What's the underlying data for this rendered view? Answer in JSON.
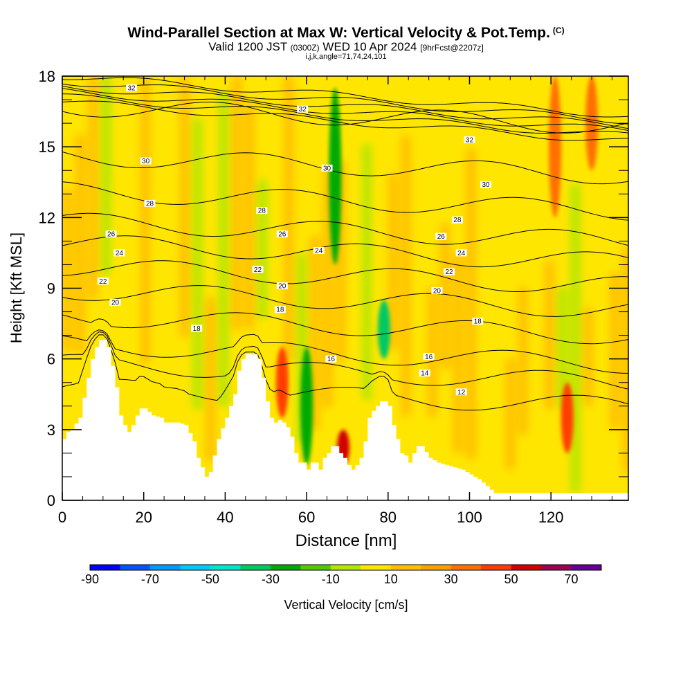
{
  "header": {
    "title": "Wind-Parallel Section at Max W: Vertical Velocity & Pot.Temp.",
    "copyright": "(C)",
    "valid_prefix": "Valid 1200 JST",
    "valid_utc": "(0300Z)",
    "valid_date": "WED 10 Apr 2024",
    "forecast": "[9hrFcst@2207z]",
    "params": "i,j,k,angle=71,74,24,101"
  },
  "chart_data": {
    "type": "heatmap",
    "title": "Wind-Parallel Section at Max W: Vertical Velocity & Pot.Temp.",
    "xlabel": "Distance [nm]",
    "ylabel": "Height [Kft MSL]",
    "xlim": [
      0,
      139
    ],
    "ylim": [
      0,
      18
    ],
    "x_ticks": [
      0,
      20,
      40,
      60,
      80,
      100,
      120
    ],
    "y_ticks": [
      0,
      3,
      6,
      9,
      12,
      15,
      18
    ],
    "terrain_profile": {
      "x": [
        0,
        1,
        2,
        4,
        6,
        7,
        8,
        9,
        10,
        11,
        12,
        13,
        14,
        15,
        16,
        17,
        18,
        19,
        20,
        22,
        24,
        25,
        26,
        28,
        30,
        32,
        33,
        34,
        35,
        36,
        37,
        38,
        40,
        42,
        43,
        44,
        45,
        46,
        47,
        48,
        49,
        50,
        51,
        52,
        53,
        54,
        55,
        56,
        57,
        58,
        59,
        60,
        61,
        62,
        63,
        64,
        65,
        66,
        67,
        68,
        69,
        70,
        71,
        72,
        73,
        74,
        75,
        76,
        77,
        78,
        79,
        80,
        81,
        82,
        83,
        84,
        85,
        86,
        87,
        88,
        90,
        92,
        94,
        96,
        98,
        100,
        102,
        104,
        106,
        108,
        110,
        115,
        120,
        125,
        130,
        135,
        139
      ],
      "y": [
        2.6,
        2.9,
        3.0,
        3.5,
        5.2,
        6.0,
        6.5,
        6.8,
        6.8,
        6.5,
        5.7,
        4.8,
        3.6,
        3.2,
        2.9,
        3.2,
        3.6,
        3.9,
        3.9,
        3.6,
        3.5,
        3.3,
        3.3,
        3.3,
        3.2,
        2.5,
        1.8,
        1.4,
        1.0,
        1.2,
        1.9,
        2.6,
        3.5,
        4.5,
        5.5,
        6.0,
        6.2,
        6.2,
        6.2,
        6.0,
        5.2,
        4.2,
        3.5,
        3.3,
        3.4,
        3.3,
        3.1,
        2.7,
        2.0,
        1.6,
        1.6,
        1.3,
        1.6,
        1.6,
        1.3,
        1.8,
        2.0,
        2.3,
        2.3,
        2.0,
        1.8,
        1.5,
        1.3,
        1.5,
        1.8,
        2.5,
        3.5,
        3.8,
        4.0,
        4.2,
        4.2,
        4.0,
        3.2,
        2.6,
        2.0,
        1.9,
        1.6,
        2.0,
        2.3,
        2.3,
        1.8,
        1.6,
        1.5,
        1.4,
        1.3,
        1.1,
        0.9,
        0.6,
        0.3,
        0.3,
        0.3,
        0.3,
        0.3,
        0.3,
        0.3,
        0.3,
        0.3
      ]
    },
    "theta_contours_K": [
      12,
      14,
      16,
      18,
      20,
      22,
      24,
      26,
      28,
      30,
      32
    ],
    "contour_labels": [
      {
        "text": "32",
        "x": 17,
        "y": 17.5
      },
      {
        "text": "32",
        "x": 59,
        "y": 16.6
      },
      {
        "text": "32",
        "x": 100,
        "y": 15.3
      },
      {
        "text": "30",
        "x": 20.5,
        "y": 14.4
      },
      {
        "text": "30",
        "x": 65,
        "y": 14.1
      },
      {
        "text": "30",
        "x": 104,
        "y": 13.4
      },
      {
        "text": "28",
        "x": 21.5,
        "y": 12.6
      },
      {
        "text": "28",
        "x": 49,
        "y": 12.3
      },
      {
        "text": "28",
        "x": 97,
        "y": 11.9
      },
      {
        "text": "26",
        "x": 12,
        "y": 11.3
      },
      {
        "text": "26",
        "x": 54,
        "y": 11.3
      },
      {
        "text": "26",
        "x": 93,
        "y": 11.2
      },
      {
        "text": "24",
        "x": 14,
        "y": 10.5
      },
      {
        "text": "24",
        "x": 63,
        "y": 10.6
      },
      {
        "text": "24",
        "x": 98,
        "y": 10.5
      },
      {
        "text": "22",
        "x": 10,
        "y": 9.3
      },
      {
        "text": "22",
        "x": 48,
        "y": 9.8
      },
      {
        "text": "22",
        "x": 95,
        "y": 9.7
      },
      {
        "text": "20",
        "x": 13,
        "y": 8.4
      },
      {
        "text": "20",
        "x": 54,
        "y": 9.1
      },
      {
        "text": "20",
        "x": 92,
        "y": 8.9
      },
      {
        "text": "18",
        "x": 33,
        "y": 7.3
      },
      {
        "text": "18",
        "x": 53.5,
        "y": 8.1
      },
      {
        "text": "18",
        "x": 102,
        "y": 7.6
      },
      {
        "text": "16",
        "x": 66,
        "y": 6.0
      },
      {
        "text": "16",
        "x": 90,
        "y": 6.1
      },
      {
        "text": "14",
        "x": 89,
        "y": 5.4
      },
      {
        "text": "12",
        "x": 98,
        "y": 4.6
      }
    ],
    "velocity_features": [
      {
        "x_center": 67,
        "z_range": [
          10,
          17.5
        ],
        "w_cm_s": -30
      },
      {
        "x_center": 60,
        "z_range": [
          1.5,
          6.5
        ],
        "w_cm_s": -25
      },
      {
        "x_center": 54,
        "z_range": [
          3.5,
          6.5
        ],
        "w_cm_s": 45
      },
      {
        "x_center": 69,
        "z_range": [
          1.5,
          3.0
        ],
        "w_cm_s": 55
      },
      {
        "x_center": 79,
        "z_range": [
          6,
          8.5
        ],
        "w_cm_s": -35
      },
      {
        "x_center": 124,
        "z_range": [
          2,
          5
        ],
        "w_cm_s": 45
      },
      {
        "x_center": 121,
        "z_range": [
          12,
          18
        ],
        "w_cm_s": 30
      },
      {
        "x_center": 130,
        "z_range": [
          14,
          18
        ],
        "w_cm_s": 30
      }
    ]
  },
  "colorbar": {
    "title": "Vertical Velocity [cm/s]",
    "tick_labels": [
      "-90",
      "-70",
      "-50",
      "-30",
      "-10",
      "10",
      "30",
      "50",
      "70"
    ],
    "levels": [
      -90,
      -80,
      -70,
      -60,
      -50,
      -40,
      -30,
      -20,
      -10,
      0,
      10,
      20,
      30,
      40,
      50,
      60,
      70
    ],
    "colors": [
      "#0000ff",
      "#0055ff",
      "#0099ff",
      "#00c8ff",
      "#00e5c8",
      "#00c864",
      "#00aa00",
      "#55c800",
      "#b4e600",
      "#ffe600",
      "#ffbf00",
      "#ffa000",
      "#ff7000",
      "#ff3c00",
      "#d20000",
      "#a00050",
      "#640096"
    ]
  }
}
